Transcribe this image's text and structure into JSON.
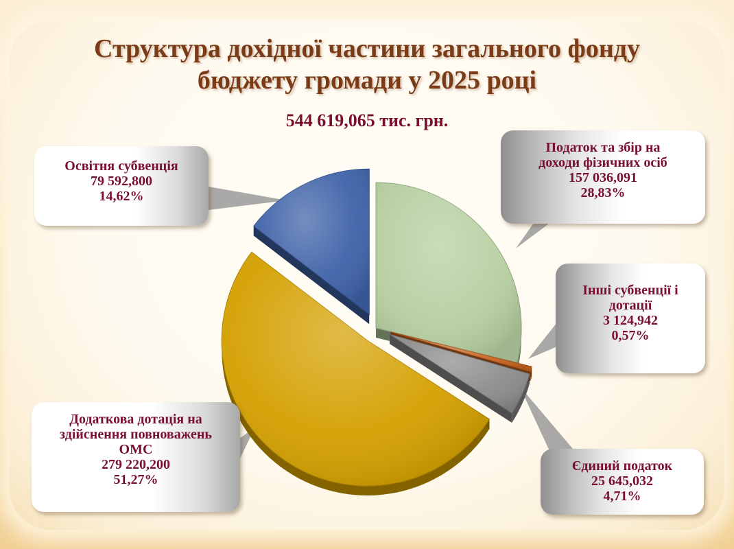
{
  "title_line1": "Структура дохідної частини загального фонду",
  "title_line2": "бюджету громади у 2025 році",
  "total_label": "544 619,065 тис. грн.",
  "chart_data": {
    "type": "pie",
    "title": "Структура дохідної частини загального фонду бюджету громади у 2025 році",
    "total": "544 619,065 тис. грн.",
    "slices": [
      {
        "name": "Податок та збір на доходи фізичних осіб",
        "label_lines": [
          "Податок та збір на",
          "доходи фізичних осіб"
        ],
        "value": 157036.091,
        "value_text": "157 036,091",
        "percent": 28.83,
        "percent_text": "28,83%",
        "color": "#b6cfa1",
        "exploded": false
      },
      {
        "name": "Інші субвенції і дотації",
        "label_lines": [
          "Інші субвенції і",
          "дотації"
        ],
        "value": 3124.942,
        "value_text": "3 124,942",
        "percent": 0.57,
        "percent_text": "0,57%",
        "color": "#c8641e",
        "exploded": true
      },
      {
        "name": "Єдиний податок",
        "label_lines": [
          "Єдиний податок"
        ],
        "value": 25645.032,
        "value_text": "25 645,032",
        "percent": 4.71,
        "percent_text": "4,71%",
        "color": "#8c8c8c",
        "exploded": true
      },
      {
        "name": "Додаткова дотація на здійснення повноважень ОМС",
        "label_lines": [
          "Додаткова дотація на",
          "здійснення повноважень",
          "ОМС"
        ],
        "value": 279220.2,
        "value_text": "279 220,200",
        "percent": 51.27,
        "percent_text": "51,27%",
        "color": "#d4a000",
        "exploded": true
      },
      {
        "name": "Освітня субвенція",
        "label_lines": [
          "Освітня субвенція"
        ],
        "value": 79592.8,
        "value_text": "79 592,800",
        "percent": 14.62,
        "percent_text": "14,62%",
        "color": "#3f62a8",
        "exploded": true
      }
    ]
  }
}
